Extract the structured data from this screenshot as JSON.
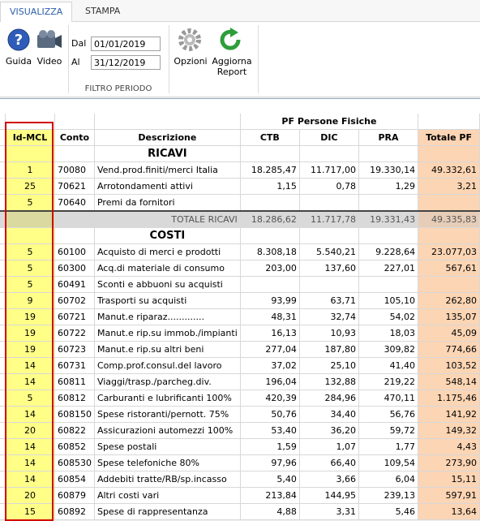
{
  "tabs": [
    "VISUALIZZA",
    "STAMPA"
  ],
  "toolbar": {
    "guida": "Guida",
    "video": "Video",
    "dal_label": "Dal",
    "dal": "01/01/2019",
    "al_label": "Al",
    "al": "31/12/2019",
    "filtro": "FILTRO PERIODO",
    "opzioni": "Opzioni",
    "aggiorna": [
      "Aggiorna",
      "Report"
    ]
  },
  "table": {
    "group_header": "PF Persone Fisiche",
    "columns": [
      "Id-MCL",
      "Conto",
      "Descrizione",
      "CTB",
      "DIC",
      "PRA",
      "Totale PF"
    ],
    "ricavi": {
      "title": "RICAVI",
      "rows": [
        [
          "1",
          "70080",
          "Vend.prod.finiti/merci Italia",
          "18.285,47",
          "11.717,00",
          "19.330,14",
          "49.332,61"
        ],
        [
          "25",
          "70621",
          "Arrotondamenti attivi",
          "1,15",
          "0,78",
          "1,29",
          "3,21"
        ],
        [
          "5",
          "70640",
          "Premi da fornitori",
          null,
          null,
          null,
          null
        ]
      ],
      "total_label": "TOTALE RICAVI",
      "totals": [
        "18.286,62",
        "11.717,78",
        "19.331,43",
        "49.335,83"
      ]
    },
    "costi": {
      "title": "COSTI",
      "rows": [
        [
          "5",
          "60100",
          "Acquisto di merci e prodotti",
          "8.308,18",
          "5.540,21",
          "9.228,64",
          "23.077,03"
        ],
        [
          "5",
          "60300",
          "Acq.di materiale di consumo",
          "203,00",
          "137,60",
          "227,01",
          "567,61"
        ],
        [
          "5",
          "60491",
          "Sconti e abbuoni su acquisti",
          null,
          null,
          null,
          null
        ],
        [
          "9",
          "60702",
          "Trasporti su acquisti",
          "93,99",
          "63,71",
          "105,10",
          "262,80"
        ],
        [
          "19",
          "60721",
          "Manut.e riparaz.............",
          "48,31",
          "32,74",
          "54,02",
          "135,07"
        ],
        [
          "19",
          "60722",
          "Manut.e rip.su immob./impianti",
          "16,13",
          "10,93",
          "18,03",
          "45,09"
        ],
        [
          "19",
          "60723",
          "Manut.e rip.su altri beni",
          "277,04",
          "187,80",
          "309,82",
          "774,66"
        ],
        [
          "14",
          "60731",
          "Comp.prof.consul.del lavoro",
          "37,02",
          "25,10",
          "41,40",
          "103,52"
        ],
        [
          "14",
          "60811",
          "Viaggi/trasp./parcheg.div.",
          "196,04",
          "132,88",
          "219,22",
          "548,14"
        ],
        [
          "5",
          "60812",
          "Carburanti e lubrificanti 100%",
          "420,39",
          "284,96",
          "470,11",
          "1.175,46"
        ],
        [
          "14",
          "608150",
          "Spese ristoranti/pernott. 75%",
          "50,76",
          "34,40",
          "56,76",
          "141,92"
        ],
        [
          "20",
          "60822",
          "Assicurazioni automezzi 100%",
          "53,40",
          "36,20",
          "59,72",
          "149,32"
        ],
        [
          "14",
          "60852",
          "Spese postali",
          "1,59",
          "1,07",
          "1,77",
          "4,43"
        ],
        [
          "14",
          "608530",
          "Spese telefoniche 80%",
          "97,96",
          "66,40",
          "109,54",
          "273,90"
        ],
        [
          "14",
          "60854",
          "Addebiti tratte/RB/sp.incasso",
          "5,40",
          "3,66",
          "6,04",
          "15,11"
        ],
        [
          "20",
          "60879",
          "Altri costi vari",
          "213,84",
          "144,95",
          "239,13",
          "597,91"
        ],
        [
          "15",
          "60892",
          "Spese di rappresentanza",
          "4,88",
          "3,31",
          "5,46",
          "13,64"
        ]
      ]
    }
  }
}
